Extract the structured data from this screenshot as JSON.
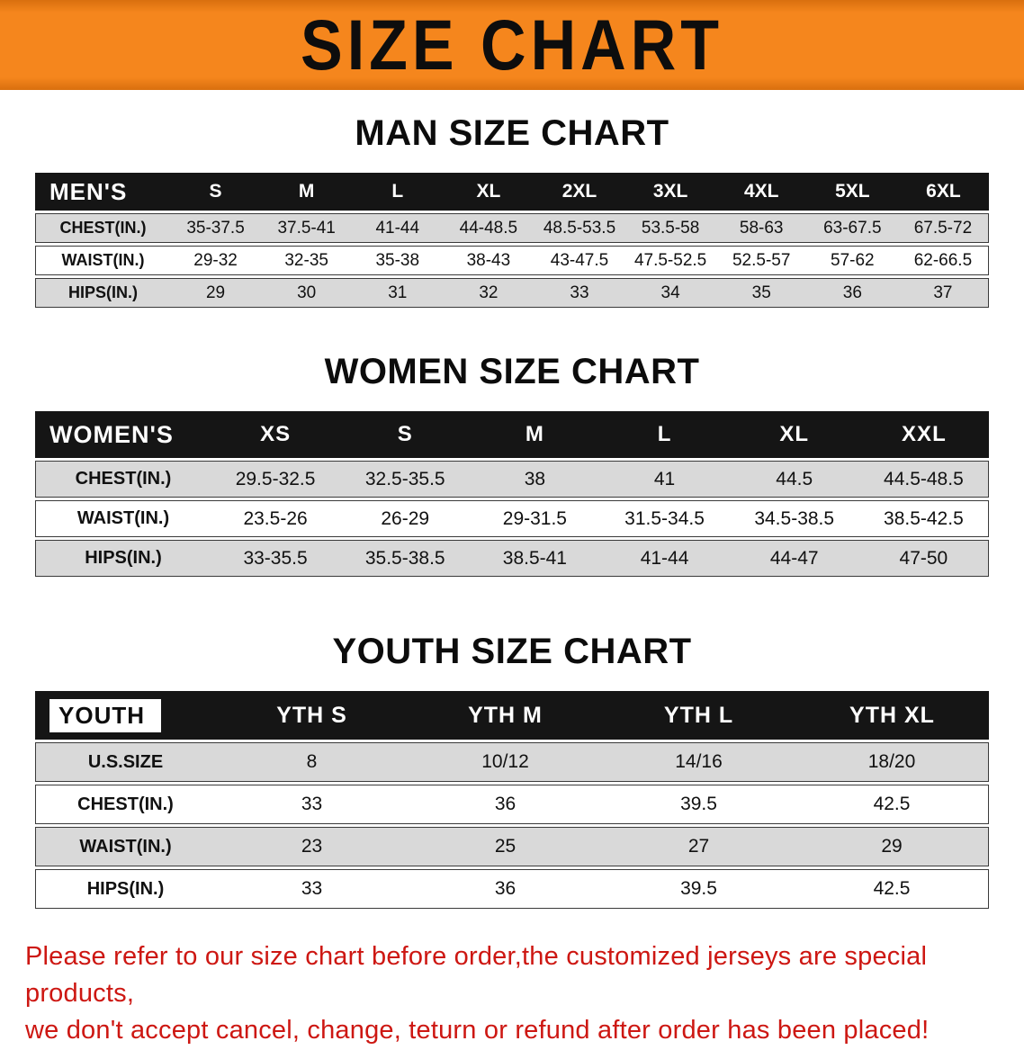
{
  "banner": {
    "title": "SIZE CHART"
  },
  "colors": {
    "banner_orange": "#f5861d",
    "header_black": "#151515",
    "row_gray": "#d9d9d9",
    "disclaimer_red": "#cd1712"
  },
  "sections": {
    "men": {
      "heading": "MAN SIZE CHART",
      "table": {
        "header": [
          "MEN'S",
          "S",
          "M",
          "L",
          "XL",
          "2XL",
          "3XL",
          "4XL",
          "5XL",
          "6XL"
        ],
        "rows": [
          [
            "CHEST(IN.)",
            "35-37.5",
            "37.5-41",
            "41-44",
            "44-48.5",
            "48.5-53.5",
            "53.5-58",
            "58-63",
            "63-67.5",
            "67.5-72"
          ],
          [
            "WAIST(IN.)",
            "29-32",
            "32-35",
            "35-38",
            "38-43",
            "43-47.5",
            "47.5-52.5",
            "52.5-57",
            "57-62",
            "62-66.5"
          ],
          [
            "HIPS(IN.)",
            "29",
            "30",
            "31",
            "32",
            "33",
            "34",
            "35",
            "36",
            "37"
          ]
        ]
      }
    },
    "women": {
      "heading": "WOMEN SIZE CHART",
      "table": {
        "header": [
          "WOMEN'S",
          "XS",
          "S",
          "M",
          "L",
          "XL",
          "XXL"
        ],
        "rows": [
          [
            "CHEST(IN.)",
            "29.5-32.5",
            "32.5-35.5",
            "38",
            "41",
            "44.5",
            "44.5-48.5"
          ],
          [
            "WAIST(IN.)",
            "23.5-26",
            "26-29",
            "29-31.5",
            "31.5-34.5",
            "34.5-38.5",
            "38.5-42.5"
          ],
          [
            "HIPS(IN.)",
            "33-35.5",
            "35.5-38.5",
            "38.5-41",
            "41-44",
            "44-47",
            "47-50"
          ]
        ]
      }
    },
    "youth": {
      "heading": "YOUTH SIZE CHART",
      "table": {
        "header": [
          "YOUTH",
          "YTH S",
          "YTH M",
          "YTH L",
          "YTH XL"
        ],
        "rows": [
          [
            "U.S.SIZE",
            "8",
            "10/12",
            "14/16",
            "18/20"
          ],
          [
            "CHEST(IN.)",
            "33",
            "36",
            "39.5",
            "42.5"
          ],
          [
            "WAIST(IN.)",
            "23",
            "25",
            "27",
            "29"
          ],
          [
            "HIPS(IN.)",
            "33",
            "36",
            "39.5",
            "42.5"
          ]
        ]
      }
    }
  },
  "disclaimer": {
    "line1": "Please refer to our size chart before order,the customized jerseys are special products,",
    "line2": "we don't accept cancel, change, teturn or refund after order has been placed!"
  }
}
